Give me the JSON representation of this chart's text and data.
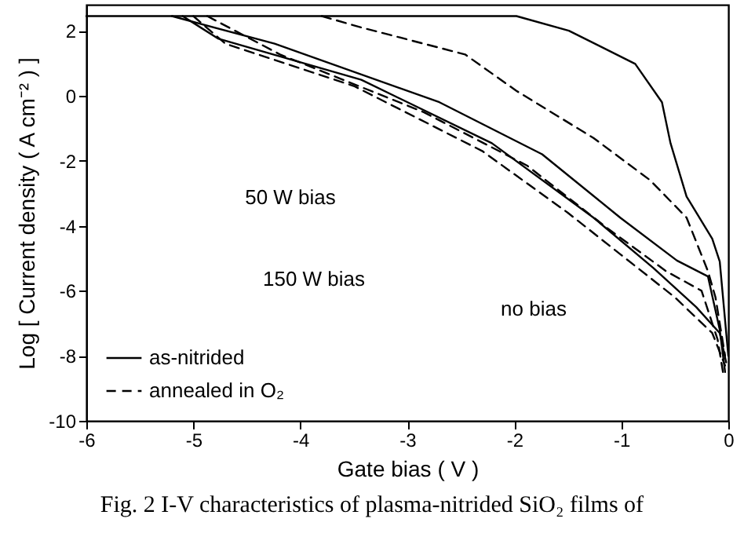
{
  "chart_data": {
    "type": "line",
    "xlabel": "Gate bias  ( V )",
    "ylabel": "Log [ Current density  ( A cm⁻² ) ]",
    "xlim": [
      -6,
      0
    ],
    "ylim": [
      -10,
      2.8
    ],
    "xticks": [
      -6,
      -5,
      -4,
      -3,
      -2,
      -1,
      0
    ],
    "yticks": [
      -10,
      -8,
      -6,
      -4,
      -2,
      0,
      2
    ],
    "grid": false,
    "legend": "bottom left",
    "marker": "none",
    "annotations": [
      "50 W bias",
      "150 W bias",
      "no bias",
      "Fig. 2  I-V characteristics of plasma-nitrided SiO₂ films of"
    ],
    "series": [
      {
        "name": "as-nitrided",
        "color": "#000000",
        "line_style": "solid",
        "x": [
          -6,
          -1.98,
          -1.49,
          -0.87,
          -0.62,
          -0.54,
          -0.39,
          -0.15,
          -0.08,
          0
        ],
        "values": [
          2.45,
          2.45,
          2.0,
          0.98,
          -0.2,
          -1.46,
          -3.1,
          -4.4,
          -5.1,
          -8.0
        ]
      },
      {
        "name": "annealed in O₂",
        "color": "#000000",
        "line_style": "dashed",
        "x": [
          -3.8,
          -3.43,
          -2.46,
          -1.98,
          -1.26,
          -0.73,
          -0.39,
          -0.19,
          -0.12,
          -0.03
        ],
        "values": [
          2.45,
          2.1,
          1.27,
          0.15,
          -1.3,
          -2.6,
          -3.75,
          -5.4,
          -6.2,
          -8.0
        ]
      },
      {
        "color": "#000000",
        "line_style": "solid",
        "x": [
          -5.2,
          -4.24,
          -2.7,
          -1.74,
          -1.01,
          -0.48,
          -0.19,
          -0.08,
          -0.03
        ],
        "values": [
          2.45,
          1.6,
          -0.2,
          -1.8,
          -3.75,
          -5.07,
          -5.56,
          -7.2,
          -8.5
        ]
      },
      {
        "color": "#000000",
        "line_style": "dashed",
        "x": [
          -4.87,
          -4.19,
          -2.85,
          -1.88,
          -1.12,
          -0.58,
          -0.25,
          -0.1,
          -0.05
        ],
        "values": [
          2.45,
          1.27,
          -0.5,
          -2.15,
          -4.1,
          -5.4,
          -6.0,
          -7.5,
          -8.5
        ]
      },
      {
        "color": "#000000",
        "line_style": "solid",
        "x": [
          -5.1,
          -4.77,
          -3.43,
          -2.21,
          -1.26,
          -0.7,
          -0.3,
          -0.08,
          -0.02
        ],
        "values": [
          2.45,
          1.76,
          0.49,
          -1.46,
          -3.75,
          -5.3,
          -6.5,
          -7.3,
          -8.2
        ]
      },
      {
        "color": "#000000",
        "line_style": "dashed",
        "x": [
          -5.0,
          -4.7,
          -3.5,
          -2.3,
          -1.5,
          -1.0,
          -0.5,
          -0.15,
          -0.03
        ],
        "values": [
          2.45,
          1.6,
          0.3,
          -1.7,
          -3.6,
          -4.9,
          -6.2,
          -7.3,
          -8.3
        ]
      }
    ]
  }
}
